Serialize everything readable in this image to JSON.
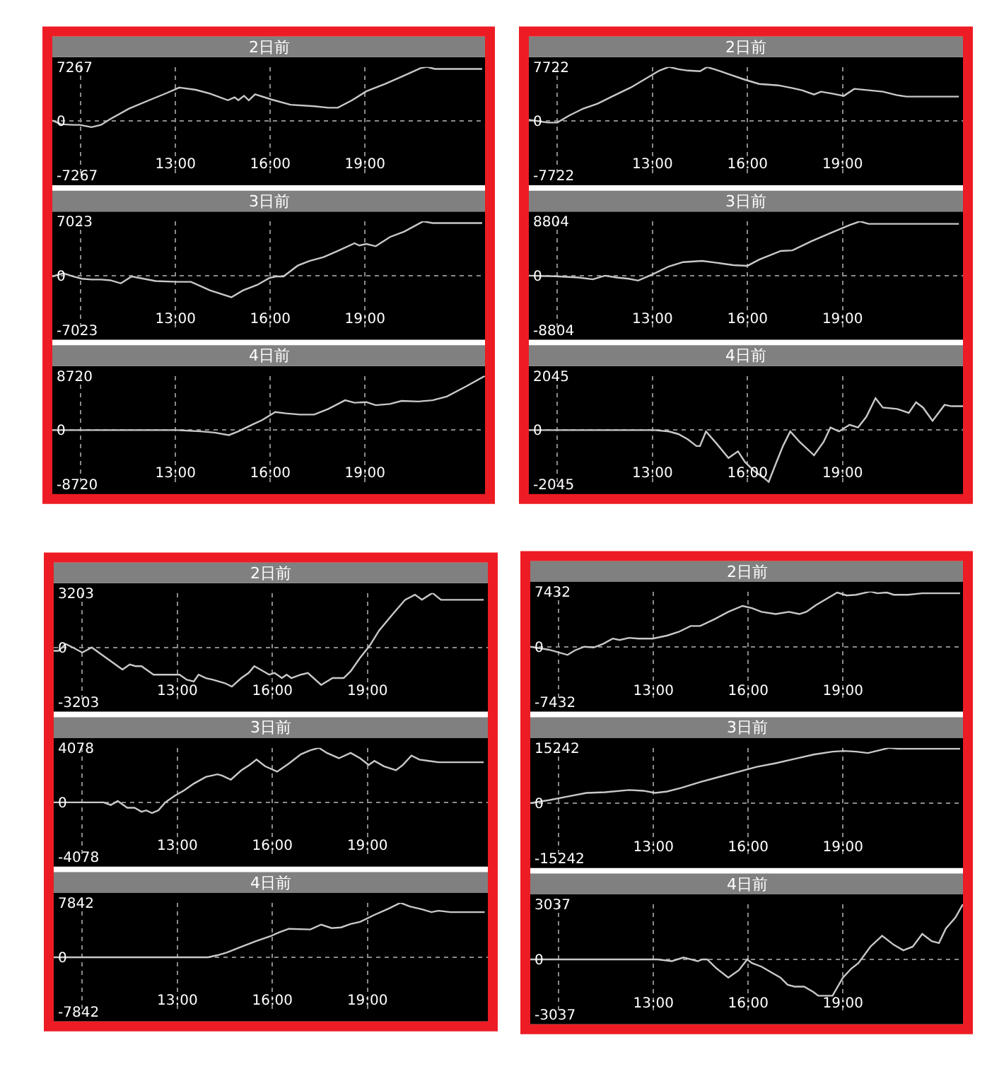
{
  "chart_data": [
    {
      "type": "line",
      "title": "2日前",
      "x": [
        9.1,
        9.37,
        9.75,
        9.97,
        10.34,
        10.64,
        10.94,
        11.54,
        12.22,
        12.74,
        13.12,
        13.64,
        14.09,
        14.66,
        14.87,
        14.99,
        15.17,
        15.32,
        15.52,
        16.04,
        16.64,
        17.39,
        17.84,
        18.14,
        18.59,
        19.04,
        19.64,
        20.24,
        20.76,
        20.96,
        21.21,
        22.71
      ],
      "values": [
        100,
        -400,
        -500,
        -500,
        -800,
        -500,
        300,
        1700,
        2900,
        3800,
        4500,
        4200,
        3700,
        2800,
        3200,
        2800,
        3400,
        2800,
        3600,
        2900,
        2200,
        2000,
        1800,
        1800,
        2800,
        4000,
        5000,
        6100,
        7100,
        7267,
        7000,
        7000
      ],
      "color": "#c8c8c8",
      "xlim": [
        9.1,
        22.8
      ],
      "xticks": [
        {
          "value": 10,
          "label": null
        },
        {
          "value": 13,
          "label": "13:00"
        },
        {
          "value": 16,
          "label": "16:00"
        },
        {
          "value": 19,
          "label": "19:00"
        }
      ],
      "ylim": [
        -7267,
        7267
      ],
      "yticks": [
        -7267,
        0,
        7267
      ],
      "grid": true
    },
    {
      "type": "line",
      "title": "3日前",
      "x": [
        9.1,
        9.45,
        9.75,
        10.04,
        10.34,
        10.64,
        10.94,
        11.27,
        11.61,
        11.99,
        12.37,
        13.04,
        13.49,
        14.09,
        14.77,
        15.14,
        15.59,
        15.97,
        16.19,
        16.42,
        16.87,
        17.24,
        17.69,
        18.14,
        18.67,
        18.82,
        19.04,
        19.34,
        19.79,
        20.24,
        20.84,
        21.14,
        22.71
      ],
      "values": [
        -100,
        300,
        -100,
        -400,
        -500,
        -500,
        -600,
        -1000,
        -100,
        -400,
        -700,
        -800,
        -800,
        -1900,
        -2800,
        -1900,
        -1200,
        -300,
        -100,
        -100,
        1300,
        1900,
        2400,
        3200,
        4200,
        3900,
        4100,
        3800,
        5000,
        5700,
        7023,
        6800,
        6800
      ],
      "color": "#c8c8c8",
      "xlim": [
        9.1,
        22.8
      ],
      "xticks": [
        {
          "value": 10,
          "label": null
        },
        {
          "value": 13,
          "label": "13:00"
        },
        {
          "value": 16,
          "label": "16:00"
        },
        {
          "value": 19,
          "label": "19:00"
        }
      ],
      "ylim": [
        -7023,
        7023
      ],
      "yticks": [
        -7023,
        0,
        7023
      ],
      "grid": true
    },
    {
      "type": "line",
      "title": "4日前",
      "x": [
        9.1,
        13.04,
        13.79,
        14.24,
        14.69,
        14.99,
        15.44,
        15.74,
        16.16,
        16.49,
        16.94,
        17.39,
        17.84,
        18.37,
        18.67,
        19.04,
        19.34,
        19.79,
        20.16,
        20.69,
        21.14,
        21.59,
        22.19,
        22.8
      ],
      "values": [
        0,
        0,
        -200,
        -400,
        -800,
        -200,
        900,
        1600,
        2900,
        2700,
        2500,
        2500,
        3400,
        4800,
        4400,
        4500,
        4000,
        4200,
        4700,
        4600,
        4800,
        5400,
        7000,
        8720
      ],
      "color": "#c8c8c8",
      "xlim": [
        9.1,
        22.8
      ],
      "xticks": [
        {
          "value": 10,
          "label": null
        },
        {
          "value": 13,
          "label": "13:00"
        },
        {
          "value": 16,
          "label": "16:00"
        },
        {
          "value": 19,
          "label": "19:00"
        }
      ],
      "ylim": [
        -8720,
        8720
      ],
      "yticks": [
        -8720,
        0,
        8720
      ],
      "grid": true
    },
    {
      "type": "line",
      "title": "2日前",
      "x": [
        9.1,
        9.4,
        9.7,
        10.0,
        10.37,
        10.82,
        11.27,
        11.72,
        12.32,
        12.77,
        13.22,
        13.52,
        13.82,
        14.12,
        14.5,
        14.72,
        15.02,
        15.47,
        15.92,
        16.37,
        16.97,
        17.42,
        17.72,
        18.1,
        18.32,
        18.7,
        19.04,
        19.37,
        19.82,
        20.27,
        20.72,
        21.02,
        22.67
      ],
      "values": [
        200,
        0,
        -200,
        -200,
        800,
        1800,
        2500,
        3500,
        4800,
        6000,
        7200,
        7722,
        7400,
        7200,
        7100,
        7700,
        7300,
        6600,
        5900,
        5300,
        5100,
        4700,
        4400,
        3800,
        4200,
        3900,
        3600,
        4600,
        4400,
        4200,
        3700,
        3500,
        3500
      ],
      "color": "#c8c8c8",
      "xlim": [
        9.1,
        22.8
      ],
      "xticks": [
        {
          "value": 10,
          "label": null
        },
        {
          "value": 13,
          "label": "13:00"
        },
        {
          "value": 16,
          "label": "16:00"
        },
        {
          "value": 19,
          "label": "19:00"
        }
      ],
      "ylim": [
        -7722,
        7722
      ],
      "yticks": [
        -7722,
        0,
        7722
      ],
      "grid": true
    },
    {
      "type": "line",
      "title": "3日前",
      "x": [
        9.1,
        9.93,
        10.67,
        11.12,
        11.5,
        11.87,
        12.25,
        12.55,
        13.0,
        13.52,
        13.97,
        14.57,
        15.02,
        15.55,
        16.0,
        16.37,
        17.05,
        17.42,
        18.02,
        18.62,
        19.22,
        19.55,
        19.82,
        22.67
      ],
      "values": [
        0,
        -100,
        -300,
        -600,
        0,
        -300,
        -500,
        -800,
        200,
        1500,
        2200,
        2400,
        2100,
        1700,
        1600,
        2600,
        4000,
        4100,
        5600,
        6900,
        8200,
        8804,
        8400,
        8400
      ],
      "color": "#c8c8c8",
      "xlim": [
        9.1,
        22.8
      ],
      "xticks": [
        {
          "value": 10,
          "label": null
        },
        {
          "value": 13,
          "label": "13:00"
        },
        {
          "value": 16,
          "label": "16:00"
        },
        {
          "value": 19,
          "label": "19:00"
        }
      ],
      "ylim": [
        -8804,
        8804
      ],
      "yticks": [
        -8804,
        0,
        8804
      ],
      "grid": true
    },
    {
      "type": "line",
      "title": "4日前",
      "x": [
        9.1,
        13.07,
        13.52,
        13.82,
        14.12,
        14.39,
        14.5,
        14.69,
        15.02,
        15.4,
        15.7,
        15.92,
        16.22,
        16.52,
        16.67,
        16.9,
        17.12,
        17.35,
        17.65,
        18.1,
        18.4,
        18.62,
        18.89,
        19.22,
        19.49,
        19.75,
        20.04,
        20.27,
        20.72,
        21.09,
        21.32,
        21.54,
        21.84,
        22.22,
        22.44,
        22.8
      ],
      "values": [
        0,
        0,
        -50,
        -150,
        -350,
        -600,
        -600,
        -50,
        -500,
        -1050,
        -800,
        -1200,
        -1550,
        -1800,
        -1950,
        -1250,
        -600,
        -50,
        -450,
        -950,
        -450,
        100,
        -50,
        200,
        100,
        500,
        1200,
        850,
        800,
        650,
        1050,
        850,
        350,
        950,
        900,
        900
      ],
      "color": "#c8c8c8",
      "xlim": [
        9.1,
        22.8
      ],
      "xticks": [
        {
          "value": 10,
          "label": null
        },
        {
          "value": 13,
          "label": "13:00"
        },
        {
          "value": 16,
          "label": "16:00"
        },
        {
          "value": 19,
          "label": "19:00"
        }
      ],
      "ylim": [
        -2045,
        2045
      ],
      "yticks": [
        -2045,
        0,
        2045
      ],
      "grid": true
    },
    {
      "type": "line",
      "title": "2日前",
      "x": [
        9.1,
        9.25,
        9.48,
        9.7,
        10.0,
        10.3,
        10.67,
        11.27,
        11.5,
        11.68,
        11.87,
        12.25,
        12.92,
        13.07,
        13.3,
        13.52,
        13.67,
        13.9,
        14.12,
        14.5,
        14.72,
        15.02,
        15.25,
        15.43,
        15.62,
        15.9,
        16.07,
        16.3,
        16.45,
        16.6,
        16.9,
        17.12,
        17.54,
        17.9,
        18.25,
        18.47,
        18.77,
        19.07,
        19.37,
        19.82,
        20.19,
        20.5,
        20.72,
        21.05,
        21.32,
        21.54,
        22.67
      ],
      "values": [
        -200,
        -200,
        200,
        0,
        -300,
        0,
        -500,
        -1300,
        -1000,
        -1100,
        -1100,
        -1600,
        -1600,
        -1600,
        -1900,
        -2000,
        -1600,
        -1800,
        -1900,
        -2100,
        -2300,
        -1800,
        -1500,
        -1100,
        -1300,
        -1600,
        -1500,
        -1800,
        -1600,
        -1800,
        -1600,
        -1500,
        -2200,
        -1800,
        -1800,
        -1400,
        -600,
        100,
        1000,
        2000,
        2800,
        3100,
        2800,
        3203,
        2800,
        2800,
        2800
      ],
      "color": "#c8c8c8",
      "xlim": [
        9.1,
        22.8
      ],
      "xticks": [
        {
          "value": 10,
          "label": null
        },
        {
          "value": 13,
          "label": "13:00"
        },
        {
          "value": 16,
          "label": "16:00"
        },
        {
          "value": 19,
          "label": "19:00"
        }
      ],
      "ylim": [
        -3203,
        3203
      ],
      "yticks": [
        -3203,
        0,
        3203
      ],
      "grid": true
    },
    {
      "type": "line",
      "title": "3日前",
      "x": [
        9.1,
        10.67,
        10.9,
        11.12,
        11.42,
        11.65,
        11.87,
        12.02,
        12.2,
        12.4,
        12.62,
        12.92,
        13.22,
        13.52,
        13.9,
        14.27,
        14.42,
        14.69,
        15.02,
        15.28,
        15.5,
        15.77,
        16.15,
        16.52,
        16.9,
        17.2,
        17.47,
        17.72,
        18.1,
        18.47,
        18.77,
        19.04,
        19.22,
        19.52,
        19.9,
        20.12,
        20.39,
        20.64,
        20.94,
        21.24,
        22.67
      ],
      "values": [
        0,
        0,
        -200,
        100,
        -400,
        -400,
        -700,
        -600,
        -800,
        -600,
        0,
        500,
        900,
        1400,
        1900,
        2100,
        2000,
        1700,
        2400,
        2800,
        3200,
        2700,
        2300,
        2900,
        3600,
        3900,
        4078,
        3700,
        3300,
        3700,
        3300,
        2800,
        3100,
        2700,
        2400,
        2800,
        3500,
        3200,
        3100,
        3000,
        3000
      ],
      "color": "#c8c8c8",
      "xlim": [
        9.1,
        22.8
      ],
      "xticks": [
        {
          "value": 10,
          "label": null
        },
        {
          "value": 13,
          "label": "13:00"
        },
        {
          "value": 16,
          "label": "16:00"
        },
        {
          "value": 19,
          "label": "19:00"
        }
      ],
      "ylim": [
        -4078,
        4078
      ],
      "yticks": [
        -4078,
        0,
        4078
      ],
      "grid": true
    },
    {
      "type": "line",
      "title": "4日前",
      "x": [
        9.1,
        13.97,
        14.27,
        14.57,
        15.02,
        15.47,
        15.92,
        16.22,
        16.52,
        17.2,
        17.54,
        17.87,
        18.17,
        18.47,
        18.77,
        19.22,
        19.67,
        20.04,
        20.34,
        20.72,
        21.02,
        21.24,
        21.62,
        22.7
      ],
      "values": [
        0,
        0,
        300,
        700,
        1500,
        2300,
        3000,
        3600,
        4100,
        4000,
        4700,
        4200,
        4300,
        4800,
        5100,
        6100,
        7000,
        7842,
        7300,
        6900,
        6500,
        6700,
        6500,
        6500
      ],
      "color": "#c8c8c8",
      "xlim": [
        9.1,
        22.8
      ],
      "xticks": [
        {
          "value": 10,
          "label": null
        },
        {
          "value": 13,
          "label": "13:00"
        },
        {
          "value": 16,
          "label": "16:00"
        },
        {
          "value": 19,
          "label": "19:00"
        }
      ],
      "ylim": [
        -7842,
        7842
      ],
      "yticks": [
        -7842,
        0,
        7842
      ],
      "grid": true
    },
    {
      "type": "line",
      "title": "2日前",
      "x": [
        9.1,
        9.69,
        10.28,
        10.51,
        10.81,
        11.11,
        11.41,
        11.71,
        11.93,
        12.23,
        12.53,
        12.98,
        13.43,
        13.8,
        14.18,
        14.48,
        14.93,
        15.37,
        15.82,
        16.12,
        16.42,
        16.87,
        17.29,
        17.62,
        17.84,
        18.14,
        18.82,
        19.12,
        19.42,
        19.87,
        20.09,
        20.39,
        20.61,
        21.06,
        21.51,
        22.71
      ],
      "values": [
        0,
        -400,
        -1100,
        -500,
        0,
        -100,
        400,
        1100,
        900,
        1200,
        1100,
        1100,
        1500,
        2000,
        2800,
        2800,
        3700,
        4700,
        5500,
        5200,
        4700,
        4400,
        4700,
        4400,
        4700,
        5600,
        7300,
        6900,
        7000,
        7432,
        7200,
        7300,
        7000,
        7000,
        7200,
        7200
      ],
      "color": "#c8c8c8",
      "xlim": [
        9.1,
        22.8
      ],
      "xticks": [
        {
          "value": 10,
          "label": null
        },
        {
          "value": 13,
          "label": "13:00"
        },
        {
          "value": 16,
          "label": "16:00"
        },
        {
          "value": 19,
          "label": "19:00"
        }
      ],
      "ylim": [
        -7432,
        7432
      ],
      "yticks": [
        -7432,
        0,
        7432
      ],
      "grid": true
    },
    {
      "type": "line",
      "title": "3日前",
      "x": [
        9.1,
        9.69,
        10.28,
        10.88,
        11.47,
        12.23,
        12.68,
        13.05,
        13.43,
        13.88,
        14.48,
        15.07,
        15.67,
        16.27,
        16.87,
        17.47,
        18.07,
        18.67,
        19.04,
        19.42,
        19.79,
        20.16,
        20.46,
        20.76,
        22.71
      ],
      "values": [
        0,
        800,
        1800,
        2800,
        3000,
        3600,
        3400,
        2800,
        3200,
        4200,
        5800,
        7200,
        8600,
        10000,
        11000,
        12200,
        13400,
        14200,
        14400,
        14200,
        13800,
        14600,
        15242,
        15000,
        15000
      ],
      "color": "#c8c8c8",
      "xlim": [
        9.1,
        22.8
      ],
      "xticks": [
        {
          "value": 10,
          "label": null
        },
        {
          "value": 13,
          "label": "13:00"
        },
        {
          "value": 16,
          "label": "16:00"
        },
        {
          "value": 19,
          "label": "19:00"
        }
      ],
      "ylim": [
        -15242,
        15242
      ],
      "yticks": [
        -15242,
        0,
        15242
      ],
      "grid": true
    },
    {
      "type": "line",
      "title": "4日前",
      "x": [
        9.1,
        13.13,
        13.58,
        13.95,
        14.18,
        14.4,
        14.55,
        14.7,
        15.0,
        15.37,
        15.7,
        15.97,
        16.12,
        16.42,
        16.72,
        17.02,
        17.25,
        17.47,
        17.77,
        18.07,
        18.22,
        18.44,
        18.67,
        19.0,
        19.27,
        19.49,
        19.87,
        20.24,
        20.61,
        20.91,
        21.21,
        21.51,
        21.81,
        22.04,
        22.26,
        22.56,
        22.8
      ],
      "values": [
        0,
        0,
        -100,
        100,
        0,
        -100,
        0,
        0,
        -500,
        -1000,
        -600,
        0,
        -200,
        -400,
        -700,
        -1000,
        -1400,
        -1500,
        -1500,
        -1800,
        -2000,
        -2000,
        -2000,
        -1000,
        -500,
        -200,
        700,
        1300,
        800,
        500,
        700,
        1400,
        1000,
        900,
        1700,
        2300,
        3037
      ],
      "color": "#c8c8c8",
      "xlim": [
        9.1,
        22.8
      ],
      "xticks": [
        {
          "value": 10,
          "label": null
        },
        {
          "value": 13,
          "label": "13:00"
        },
        {
          "value": 16,
          "label": "16:00"
        },
        {
          "value": 19,
          "label": "19:00"
        }
      ],
      "ylim": [
        -3037,
        3037
      ],
      "yticks": [
        -3037,
        0,
        3037
      ],
      "grid": true
    }
  ]
}
